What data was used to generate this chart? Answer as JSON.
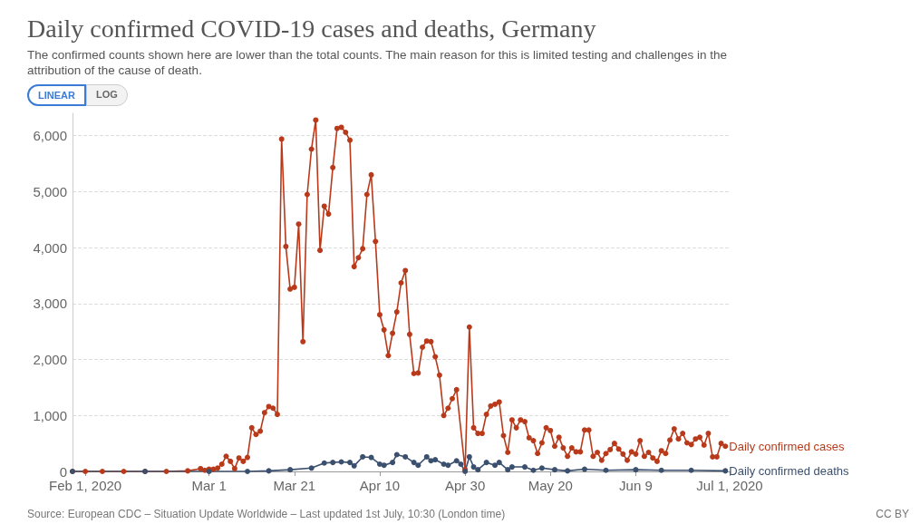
{
  "chart_data": {
    "type": "line",
    "title": "Daily confirmed COVID-19 cases and deaths, Germany",
    "subtitle": "The confirmed counts shown here are lower than the total counts. The main reason for this is limited testing and challenges in the attribution of the cause of death.",
    "annotations": [
      "Source: European CDC – Situation Update Worldwide – Last updated 1st July, 10:30 (London time)",
      "CC BY",
      "LINEAR",
      "LOG"
    ],
    "xlim": [
      "2020-01-29",
      "2020-07-01"
    ],
    "xticks": [
      {
        "value": "2020-02-01",
        "label": "Feb 1, 2020"
      },
      {
        "value": "2020-03-01",
        "label": "Mar 1"
      },
      {
        "value": "2020-03-21",
        "label": "Mar 21"
      },
      {
        "value": "2020-04-10",
        "label": "Apr 10"
      },
      {
        "value": "2020-04-30",
        "label": "Apr 30"
      },
      {
        "value": "2020-05-20",
        "label": "May 20"
      },
      {
        "value": "2020-06-09",
        "label": "Jun 9"
      },
      {
        "value": "2020-07-01",
        "label": "Jul 1, 2020"
      }
    ],
    "ylim": [
      0,
      6400
    ],
    "yticks": [
      0,
      {
        "value": 1000,
        "label": "1,000"
      },
      {
        "value": 2000,
        "label": "2,000"
      },
      {
        "value": 3000,
        "label": "3,000"
      },
      {
        "value": 4000,
        "label": "4,000"
      },
      {
        "value": 5000,
        "label": "5,000"
      },
      {
        "value": 6000,
        "label": "6,000"
      }
    ],
    "grid": "y",
    "legend": false,
    "marker": "circle",
    "line_style": "solid",
    "series": [
      {
        "name": "Daily confirmed cases",
        "color": "#b83a1b",
        "x": [
          "2020-01-29",
          "2020-02-01",
          "2020-02-05",
          "2020-02-10",
          "2020-02-15",
          "2020-02-20",
          "2020-02-25",
          "2020-02-28",
          "2020-02-29",
          "2020-03-01",
          "2020-03-02",
          "2020-03-03",
          "2020-03-04",
          "2020-03-05",
          "2020-03-06",
          "2020-03-07",
          "2020-03-08",
          "2020-03-09",
          "2020-03-10",
          "2020-03-11",
          "2020-03-12",
          "2020-03-13",
          "2020-03-14",
          "2020-03-15",
          "2020-03-16",
          "2020-03-17",
          "2020-03-18",
          "2020-03-19",
          "2020-03-20",
          "2020-03-21",
          "2020-03-22",
          "2020-03-23",
          "2020-03-24",
          "2020-03-25",
          "2020-03-26",
          "2020-03-27",
          "2020-03-28",
          "2020-03-29",
          "2020-03-30",
          "2020-03-31",
          "2020-04-01",
          "2020-04-02",
          "2020-04-03",
          "2020-04-04",
          "2020-04-05",
          "2020-04-06",
          "2020-04-07",
          "2020-04-08",
          "2020-04-09",
          "2020-04-10",
          "2020-04-11",
          "2020-04-12",
          "2020-04-13",
          "2020-04-14",
          "2020-04-15",
          "2020-04-16",
          "2020-04-17",
          "2020-04-18",
          "2020-04-19",
          "2020-04-20",
          "2020-04-21",
          "2020-04-22",
          "2020-04-23",
          "2020-04-24",
          "2020-04-25",
          "2020-04-26",
          "2020-04-27",
          "2020-04-28",
          "2020-04-30",
          "2020-05-01",
          "2020-05-02",
          "2020-05-03",
          "2020-05-04",
          "2020-05-05",
          "2020-05-06",
          "2020-05-07",
          "2020-05-08",
          "2020-05-09",
          "2020-05-10",
          "2020-05-11",
          "2020-05-12",
          "2020-05-13",
          "2020-05-14",
          "2020-05-15",
          "2020-05-16",
          "2020-05-17",
          "2020-05-18",
          "2020-05-19",
          "2020-05-20",
          "2020-05-21",
          "2020-05-22",
          "2020-05-23",
          "2020-05-24",
          "2020-05-25",
          "2020-05-26",
          "2020-05-27",
          "2020-05-28",
          "2020-05-29",
          "2020-05-30",
          "2020-05-31",
          "2020-06-01",
          "2020-06-02",
          "2020-06-03",
          "2020-06-04",
          "2020-06-05",
          "2020-06-06",
          "2020-06-07",
          "2020-06-08",
          "2020-06-09",
          "2020-06-10",
          "2020-06-11",
          "2020-06-12",
          "2020-06-13",
          "2020-06-14",
          "2020-06-15",
          "2020-06-16",
          "2020-06-17",
          "2020-06-18",
          "2020-06-19",
          "2020-06-20",
          "2020-06-21",
          "2020-06-22",
          "2020-06-23",
          "2020-06-24",
          "2020-06-25",
          "2020-06-26",
          "2020-06-27",
          "2020-06-28",
          "2020-06-29",
          "2020-06-30"
        ],
        "values": [
          0,
          0,
          0,
          0,
          0,
          0,
          10,
          50,
          20,
          40,
          40,
          60,
          130,
          270,
          180,
          50,
          240,
          180,
          250,
          780,
          660,
          720,
          1050,
          1160,
          1130,
          1020,
          5940,
          4020,
          3260,
          3290,
          4420,
          2320,
          4950,
          5760,
          6280,
          3950,
          4740,
          4600,
          5430,
          6130,
          6150,
          6060,
          5920,
          3660,
          3820,
          3980,
          4950,
          5300,
          4110,
          2800,
          2530,
          2070,
          2470,
          2850,
          3370,
          3590,
          2450,
          1750,
          1760,
          2220,
          2330,
          2320,
          2050,
          1720,
          1000,
          1130,
          1300,
          1460,
          30,
          2580,
          780,
          680,
          680,
          1020,
          1170,
          1200,
          1240,
          640,
          340,
          920,
          780,
          920,
          890,
          600,
          550,
          320,
          510,
          780,
          730,
          450,
          610,
          420,
          270,
          420,
          350,
          350,
          740,
          740,
          270,
          340,
          200,
          320,
          390,
          500,
          400,
          310,
          200,
          350,
          310,
          550,
          270,
          340,
          240,
          180,
          370,
          320,
          560,
          760,
          580,
          680,
          510,
          480,
          580,
          610,
          470,
          680,
          260,
          260,
          500,
          450
        ]
      },
      {
        "name": "Daily confirmed deaths",
        "color": "#3b4f6e",
        "x": [
          "2020-01-29",
          "2020-02-15",
          "2020-03-01",
          "2020-03-10",
          "2020-03-15",
          "2020-03-20",
          "2020-03-25",
          "2020-03-28",
          "2020-03-30",
          "2020-04-01",
          "2020-04-03",
          "2020-04-04",
          "2020-04-06",
          "2020-04-08",
          "2020-04-10",
          "2020-04-11",
          "2020-04-13",
          "2020-04-14",
          "2020-04-16",
          "2020-04-18",
          "2020-04-19",
          "2020-04-21",
          "2020-04-22",
          "2020-04-23",
          "2020-04-25",
          "2020-04-26",
          "2020-04-28",
          "2020-04-29",
          "2020-04-30",
          "2020-05-01",
          "2020-05-02",
          "2020-05-03",
          "2020-05-05",
          "2020-05-07",
          "2020-05-08",
          "2020-05-10",
          "2020-05-11",
          "2020-05-14",
          "2020-05-16",
          "2020-05-18",
          "2020-05-21",
          "2020-05-24",
          "2020-05-28",
          "2020-06-02",
          "2020-06-09",
          "2020-06-15",
          "2020-06-22",
          "2020-06-30"
        ],
        "values": [
          0,
          0,
          0,
          0,
          10,
          30,
          60,
          150,
          160,
          170,
          160,
          100,
          260,
          250,
          130,
          110,
          160,
          300,
          260,
          160,
          110,
          260,
          190,
          210,
          130,
          110,
          190,
          130,
          0,
          260,
          80,
          30,
          160,
          110,
          160,
          30,
          80,
          80,
          20,
          60,
          30,
          10,
          40,
          20,
          30,
          20,
          20,
          10
        ]
      }
    ]
  }
}
